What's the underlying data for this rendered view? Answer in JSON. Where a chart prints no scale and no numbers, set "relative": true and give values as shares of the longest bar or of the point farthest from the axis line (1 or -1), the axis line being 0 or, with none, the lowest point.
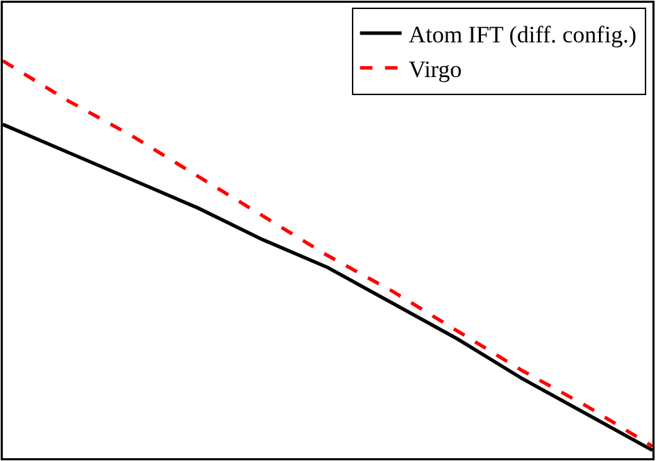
{
  "chart_data": {
    "type": "line",
    "relative": true,
    "legend": "top right",
    "categories": [
      null,
      null,
      null,
      null,
      null,
      null,
      null,
      null,
      null,
      null,
      null
    ],
    "series": [
      {
        "name": "Atom IFT (diff. config.)",
        "color": "#000000",
        "line_style": "solid",
        "values": [
          0.84,
          0.77,
          0.7,
          0.63,
          0.55,
          0.48,
          0.39,
          0.3,
          0.2,
          0.11,
          0.02
        ]
      },
      {
        "name": "Virgo",
        "color": "#ff0000",
        "line_style": "dashed",
        "values": [
          1,
          0.9,
          0.81,
          0.71,
          0.61,
          0.51,
          0.42,
          0.32,
          0.22,
          0.13,
          0.03
        ]
      }
    ]
  }
}
